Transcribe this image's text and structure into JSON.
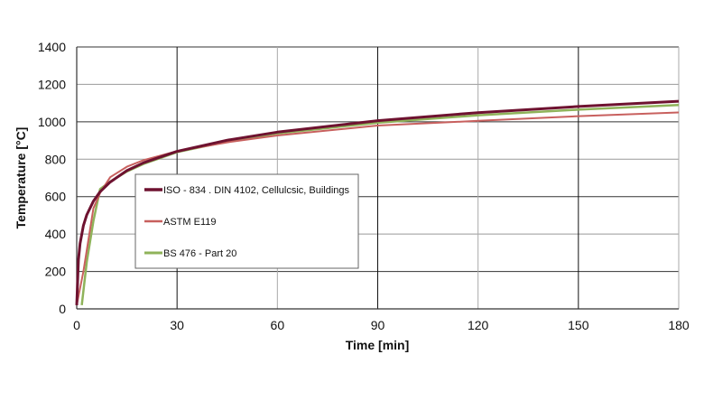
{
  "chart_data": {
    "type": "line",
    "title": "",
    "xlabel": "Time [min]",
    "ylabel": "Temperature [°C]",
    "xlim": [
      0,
      180
    ],
    "ylim": [
      0,
      1400
    ],
    "xticks": [
      0,
      30,
      60,
      90,
      120,
      150,
      180
    ],
    "yticks": [
      0,
      200,
      400,
      600,
      800,
      1000,
      1200,
      1400
    ],
    "grid": true,
    "legend_position": "center-left",
    "series": [
      {
        "name": "ISO - 834 . DIN 4102, Cellulcsic, Buildings",
        "color": "#6e1230",
        "x": [
          0,
          0.5,
          1,
          2,
          3,
          5,
          7,
          10,
          15,
          20,
          30,
          45,
          60,
          90,
          120,
          150,
          180
        ],
        "y": [
          20,
          261,
          349,
          445,
          502,
          576,
          626,
          678,
          739,
          781,
          842,
          902,
          945,
          1006,
          1049,
          1082,
          1110
        ]
      },
      {
        "name": "ASTM E119",
        "color": "#c8605e",
        "x": [
          0,
          2,
          5,
          7,
          10,
          15,
          20,
          30,
          45,
          60,
          90,
          120,
          150,
          180
        ],
        "y": [
          20,
          200,
          538,
          620,
          704,
          760,
          795,
          843,
          890,
          927,
          980,
          1005,
          1030,
          1050
        ]
      },
      {
        "name": "BS 476 - Part 20",
        "color": "#8fb35a",
        "x": [
          1.5,
          3,
          5,
          7,
          10,
          15,
          20,
          30,
          45,
          60,
          90,
          120,
          150,
          180
        ],
        "y": [
          20,
          250,
          470,
          640,
          680,
          735,
          775,
          838,
          895,
          938,
          995,
          1035,
          1065,
          1090
        ]
      }
    ]
  }
}
